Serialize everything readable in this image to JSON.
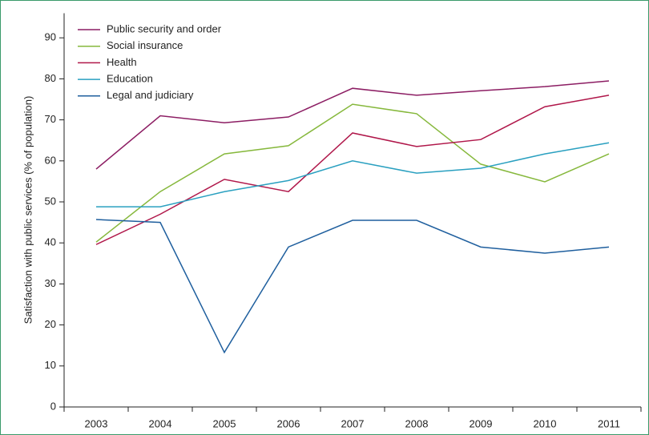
{
  "chart_data": {
    "type": "line",
    "y_label": "Satisfaction with public services (% of population)",
    "categories": [
      "2003",
      "2004",
      "2005",
      "2006",
      "2007",
      "2008",
      "2009",
      "2010",
      "2011"
    ],
    "series": [
      {
        "name": "Public security and order",
        "color": "#8c1d63",
        "values": [
          58,
          71,
          69.3,
          70.7,
          77.7,
          76,
          77.1,
          78.1,
          79.5
        ]
      },
      {
        "name": "Social insurance",
        "color": "#86b83c",
        "values": [
          40.2,
          52.5,
          61.7,
          63.7,
          73.8,
          71.5,
          59.2,
          54.9,
          61.7
        ]
      },
      {
        "name": "Health",
        "color": "#b0174a",
        "values": [
          39.6,
          47,
          55.5,
          52.5,
          66.8,
          63.5,
          65.2,
          73.2,
          76
        ]
      },
      {
        "name": "Education",
        "color": "#2aa0c0",
        "values": [
          48.8,
          48.8,
          52.5,
          55.2,
          60,
          57,
          58.2,
          61.7,
          64.4
        ]
      },
      {
        "name": "Legal and judiciary",
        "color": "#1f5f9e",
        "values": [
          45.7,
          45,
          13.3,
          39,
          45.5,
          45.5,
          39,
          37.5,
          39
        ]
      }
    ],
    "ylim": [
      0,
      96
    ],
    "yticks": [
      0,
      10,
      20,
      30,
      40,
      50,
      60,
      70,
      80,
      90
    ],
    "grid": false,
    "legend": "top-left"
  }
}
